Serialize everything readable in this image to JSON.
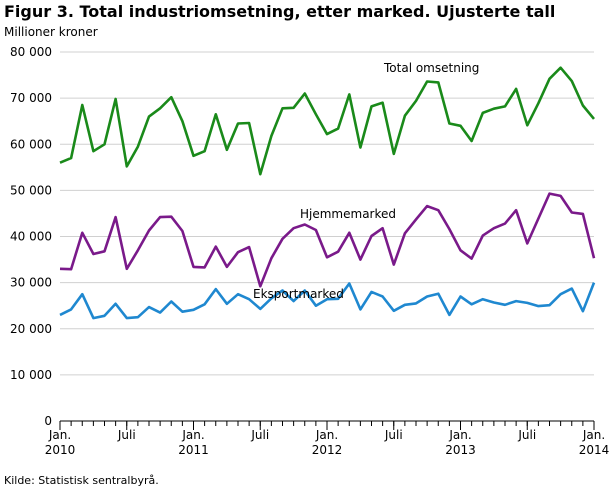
{
  "figure": {
    "title": "Figur 3. Total industriomsetning, etter marked. Ujusterte tall",
    "unit_label": "Millioner kroner",
    "source": "Kilde: Statistisk sentralbyrå."
  },
  "chart_data": {
    "type": "line",
    "title": "Figur 3. Total industriomsetning, etter marked. Ujusterte tall",
    "ylabel": "Millioner kroner",
    "ylim": [
      0,
      80000
    ],
    "yticks": [
      0,
      10000,
      20000,
      30000,
      40000,
      50000,
      60000,
      70000,
      80000
    ],
    "ytick_labels": [
      "0",
      "10 000",
      "20 000",
      "30 000",
      "40 000",
      "50 000",
      "60 000",
      "70 000",
      "80 000"
    ],
    "x": [
      "2010-01",
      "2010-02",
      "2010-03",
      "2010-04",
      "2010-05",
      "2010-06",
      "2010-07",
      "2010-08",
      "2010-09",
      "2010-10",
      "2010-11",
      "2010-12",
      "2011-01",
      "2011-02",
      "2011-03",
      "2011-04",
      "2011-05",
      "2011-06",
      "2011-07",
      "2011-08",
      "2011-09",
      "2011-10",
      "2011-11",
      "2011-12",
      "2012-01",
      "2012-02",
      "2012-03",
      "2012-04",
      "2012-05",
      "2012-06",
      "2012-07",
      "2012-08",
      "2012-09",
      "2012-10",
      "2012-11",
      "2012-12",
      "2013-01",
      "2013-02",
      "2013-03",
      "2013-04",
      "2013-05",
      "2013-06",
      "2013-07",
      "2013-08",
      "2013-09",
      "2013-10",
      "2013-11",
      "2013-12",
      "2014-01"
    ],
    "xticks": [
      {
        "index": 0,
        "line1": "Jan.",
        "line2": "2010"
      },
      {
        "index": 6,
        "line1": "Juli",
        "line2": ""
      },
      {
        "index": 12,
        "line1": "Jan.",
        "line2": "2011"
      },
      {
        "index": 18,
        "line1": "Juli",
        "line2": ""
      },
      {
        "index": 24,
        "line1": "Jan.",
        "line2": "2012"
      },
      {
        "index": 30,
        "line1": "Juli",
        "line2": ""
      },
      {
        "index": 36,
        "line1": "Jan.",
        "line2": "2013"
      },
      {
        "index": 42,
        "line1": "Juli",
        "line2": ""
      },
      {
        "index": 48,
        "line1": "Jan.",
        "line2": "2014"
      }
    ],
    "grid": true,
    "series": [
      {
        "name": "Total omsetning",
        "color": "#1a8a1a",
        "values": [
          56000,
          57000,
          68500,
          58500,
          60000,
          69800,
          55200,
          59500,
          66000,
          67800,
          70200,
          65000,
          57500,
          58500,
          66500,
          58800,
          64500,
          64600,
          53500,
          61800,
          67800,
          67900,
          71000,
          66500,
          62200,
          63400,
          70800,
          59300,
          68200,
          69000,
          57900,
          66200,
          69400,
          73600,
          73400,
          64500,
          64000,
          60700,
          66800,
          67700,
          68200,
          72000,
          64100,
          68900,
          74200,
          76600,
          73700,
          68400,
          65500
        ]
      },
      {
        "name": "Hjemmemarked",
        "color": "#7a1a8a",
        "values": [
          33000,
          32900,
          40800,
          36200,
          36800,
          44200,
          33000,
          37000,
          41300,
          44200,
          44300,
          41200,
          33400,
          33300,
          37800,
          33400,
          36600,
          37700,
          29200,
          35300,
          39500,
          41800,
          42600,
          41400,
          35500,
          36700,
          40800,
          35000,
          40100,
          41800,
          33900,
          40700,
          43700,
          46600,
          45700,
          41600,
          37000,
          35200,
          40200,
          41800,
          42800,
          45700,
          38500,
          43900,
          49300,
          48800,
          45200,
          44900,
          35300
        ]
      },
      {
        "name": "Eksportmarked",
        "color": "#1f88d0",
        "values": [
          23000,
          24200,
          27500,
          22300,
          22800,
          25400,
          22300,
          22500,
          24700,
          23500,
          25900,
          23700,
          24100,
          25300,
          28600,
          25400,
          27500,
          26400,
          24300,
          26600,
          28300,
          26000,
          28300,
          25000,
          26400,
          26500,
          29800,
          24200,
          28000,
          27000,
          23900,
          25200,
          25500,
          27000,
          27600,
          23000,
          27000,
          25300,
          26400,
          25700,
          25200,
          26000,
          25600,
          24900,
          25100,
          27500,
          28700,
          23800,
          30000
        ]
      }
    ],
    "annotations": [
      {
        "text": "Total omsetning",
        "series": 0
      },
      {
        "text": "Hjemmemarked",
        "series": 1
      },
      {
        "text": "Eksportmarked",
        "series": 2
      }
    ]
  }
}
